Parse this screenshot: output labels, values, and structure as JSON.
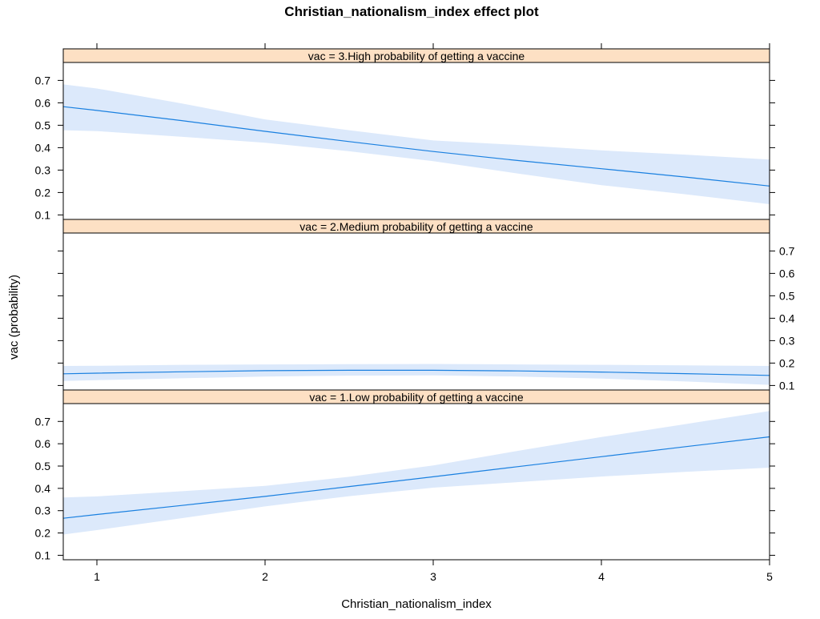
{
  "chart_data": {
    "type": "line",
    "title": "Christian_nationalism_index effect plot",
    "xlabel": "Christian_nationalism_index",
    "ylabel": "vac (probability)",
    "xlim": [
      0.8,
      5.0
    ],
    "ylim": [
      0.08,
      0.78
    ],
    "xticks": [
      1,
      2,
      3,
      4,
      5
    ],
    "yticks": [
      0.1,
      0.2,
      0.3,
      0.4,
      0.5,
      0.6,
      0.7
    ],
    "colors": {
      "line": "#1a80e0",
      "band": "#dce9fb",
      "strip": "#fde0c4",
      "frame": "#000000"
    },
    "panels": [
      {
        "label": "vac = 3.High  probability of getting a vaccine",
        "y_axis_side": "left",
        "x": [
          0.8,
          1,
          1.5,
          2,
          2.5,
          3,
          3.5,
          4,
          4.5,
          5
        ],
        "fit": [
          0.583,
          0.566,
          0.521,
          0.473,
          0.427,
          0.383,
          0.343,
          0.306,
          0.269,
          0.229
        ],
        "lower": [
          0.478,
          0.474,
          0.449,
          0.422,
          0.384,
          0.34,
          0.285,
          0.233,
          0.192,
          0.148
        ],
        "upper": [
          0.682,
          0.664,
          0.598,
          0.526,
          0.478,
          0.432,
          0.412,
          0.388,
          0.369,
          0.347
        ]
      },
      {
        "label": "vac = 2.Medium probability of getting a vaccine",
        "y_axis_side": "right",
        "x": [
          0.8,
          1,
          1.5,
          2,
          2.5,
          3,
          3.5,
          4,
          4.5,
          5
        ],
        "fit": [
          0.152,
          0.155,
          0.161,
          0.166,
          0.168,
          0.168,
          0.165,
          0.16,
          0.153,
          0.145
        ],
        "lower": [
          0.12,
          0.124,
          0.132,
          0.14,
          0.144,
          0.145,
          0.14,
          0.131,
          0.118,
          0.103
        ],
        "upper": [
          0.187,
          0.188,
          0.192,
          0.194,
          0.195,
          0.196,
          0.194,
          0.192,
          0.19,
          0.187
        ]
      },
      {
        "label": "vac = 1.Low probability of getting a vaccine",
        "y_axis_side": "left",
        "x": [
          0.8,
          1,
          1.5,
          2,
          2.5,
          3,
          3.5,
          4,
          4.5,
          5
        ],
        "fit": [
          0.266,
          0.283,
          0.323,
          0.364,
          0.408,
          0.452,
          0.497,
          0.542,
          0.587,
          0.631
        ],
        "lower": [
          0.193,
          0.213,
          0.266,
          0.319,
          0.365,
          0.403,
          0.428,
          0.453,
          0.474,
          0.493
        ],
        "upper": [
          0.359,
          0.364,
          0.387,
          0.411,
          0.452,
          0.503,
          0.568,
          0.63,
          0.688,
          0.747
        ]
      }
    ]
  }
}
